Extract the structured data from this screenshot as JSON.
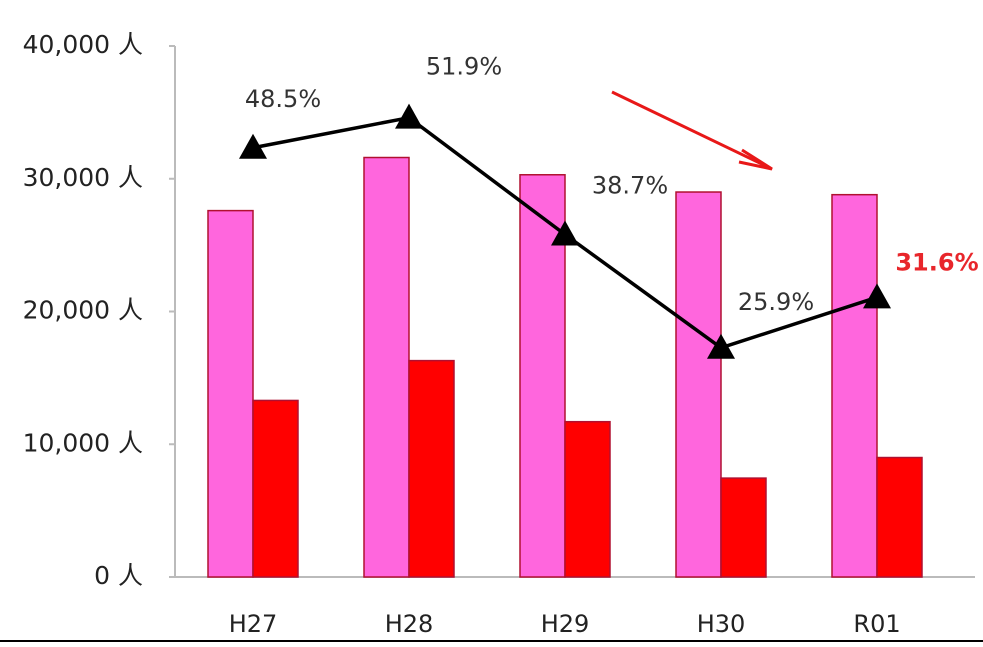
{
  "chart_data": {
    "type": "bar",
    "categories": [
      "H27",
      "H28",
      "H29",
      "H30",
      "R01"
    ],
    "series": [
      {
        "type": "bar",
        "color": "#ff66dd",
        "values": [
          27600,
          31600,
          30300,
          29000,
          28800
        ]
      },
      {
        "type": "bar",
        "color": "#ff0000",
        "values": [
          13300,
          16300,
          11700,
          7450,
          9000
        ]
      },
      {
        "type": "line",
        "axis": "y2",
        "color": "#000000",
        "values": [
          48.5,
          51.9,
          38.7,
          25.9,
          31.6
        ],
        "value_labels": [
          "48.5%",
          "51.9%",
          "38.7%",
          "25.9%",
          "31.6%"
        ],
        "value_label_colors": [
          "#333333",
          "#333333",
          "#333333",
          "#333333",
          "#e8262b"
        ]
      }
    ],
    "ylim": [
      0,
      40000
    ],
    "yticks": [
      {
        "value": 0,
        "label": "0 人"
      },
      {
        "value": 10000,
        "label": "10,000 人"
      },
      {
        "value": 20000,
        "label": "20,000 人"
      },
      {
        "value": 30000,
        "label": "30,000 人"
      },
      {
        "value": 40000,
        "label": "40,000 人"
      }
    ],
    "y2lim": [
      0,
      60
    ],
    "grid": false
  }
}
